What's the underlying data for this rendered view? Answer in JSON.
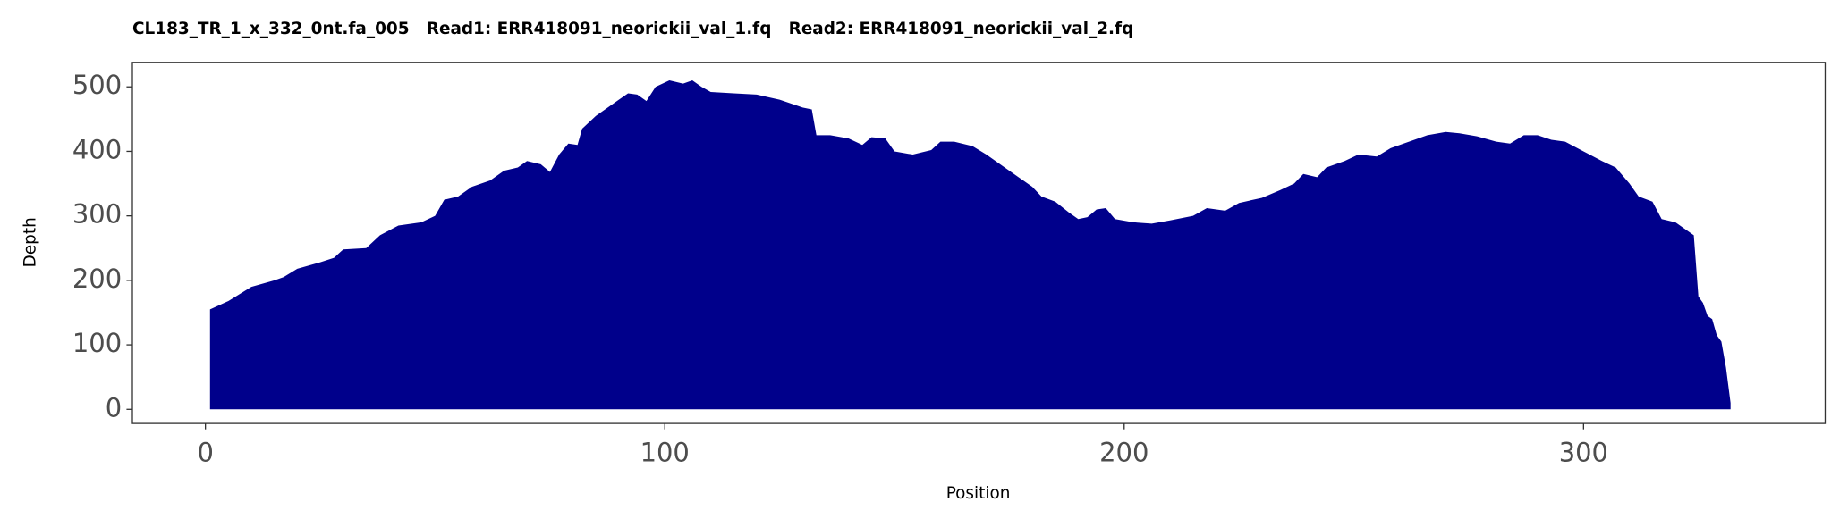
{
  "chart_data": {
    "type": "area",
    "title": "CL183_TR_1_x_332_0nt.fa_005   Read1: ERR418091_neorickii_val_1.fq   Read2: ERR418091_neorickii_val_2.fq",
    "x_label": "Position",
    "y_label": "Depth",
    "color": "#00008b",
    "xlim": [
      -15.9,
      352.6
    ],
    "xticks": [
      0,
      100,
      200,
      300
    ],
    "ylim": [
      -21.9,
      538
    ],
    "yticks": [
      0,
      100,
      200,
      300,
      400,
      500
    ],
    "x": [
      1,
      5,
      10,
      15,
      17,
      20,
      25,
      28,
      30,
      35,
      38,
      42,
      47,
      50,
      52,
      55,
      58,
      62,
      65,
      68,
      70,
      73,
      75,
      77,
      79,
      81,
      82,
      85,
      88,
      90,
      92,
      94,
      96,
      98,
      101,
      104,
      106,
      108,
      110,
      115,
      120,
      125,
      130,
      132,
      133,
      136,
      140,
      143,
      145,
      148,
      150,
      154,
      158,
      160,
      163,
      167,
      170,
      173,
      177,
      180,
      182,
      185,
      188,
      190,
      192,
      194,
      196,
      198,
      202,
      206,
      210,
      215,
      218,
      222,
      225,
      230,
      234,
      237,
      239,
      242,
      244,
      248,
      251,
      255,
      258,
      262,
      266,
      270,
      273,
      277,
      281,
      284,
      287,
      290,
      293,
      296,
      300,
      304,
      307,
      310,
      312,
      315,
      317,
      320,
      324,
      325,
      326,
      327,
      328,
      329,
      330,
      331,
      332
    ],
    "values": [
      155,
      168,
      190,
      200,
      205,
      218,
      228,
      235,
      248,
      250,
      270,
      285,
      290,
      300,
      325,
      330,
      345,
      355,
      370,
      375,
      385,
      380,
      368,
      395,
      412,
      410,
      435,
      455,
      470,
      480,
      490,
      488,
      478,
      500,
      510,
      505,
      510,
      500,
      492,
      490,
      488,
      480,
      468,
      465,
      425,
      425,
      420,
      410,
      422,
      420,
      400,
      395,
      402,
      415,
      415,
      408,
      395,
      380,
      360,
      345,
      330,
      322,
      305,
      295,
      298,
      310,
      312,
      295,
      290,
      288,
      293,
      300,
      312,
      308,
      320,
      328,
      340,
      350,
      365,
      360,
      375,
      385,
      395,
      392,
      405,
      415,
      425,
      430,
      428,
      423,
      415,
      412,
      425,
      425,
      418,
      415,
      400,
      385,
      375,
      350,
      330,
      322,
      295,
      290,
      270,
      175,
      165,
      145,
      140,
      115,
      105,
      65,
      10
    ]
  }
}
